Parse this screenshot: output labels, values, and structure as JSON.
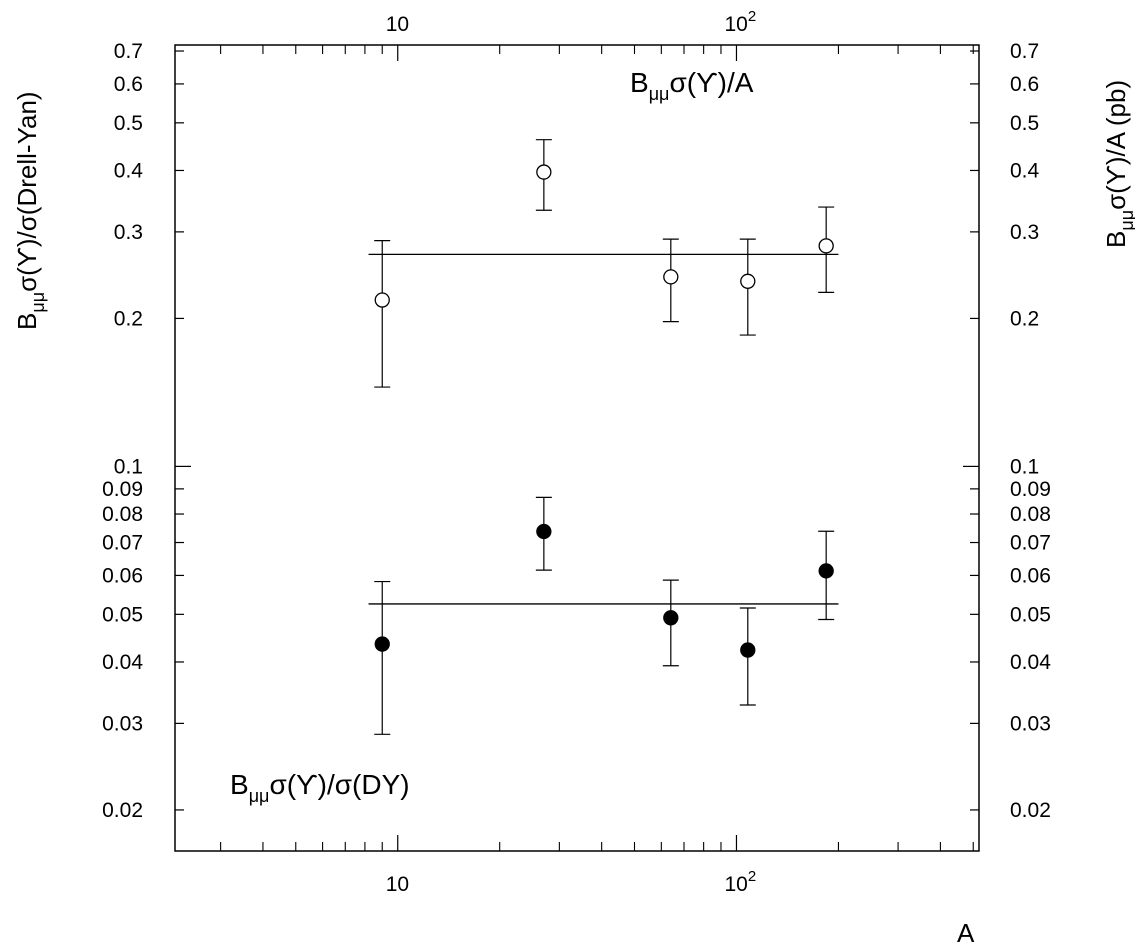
{
  "chart_data": {
    "type": "scatter",
    "x_scale": "log",
    "y_scale": "log",
    "xlim": [
      2.2,
      520
    ],
    "ylim": [
      0.0165,
      0.72
    ],
    "xlabel": "A",
    "ylabel_left": {
      "main": "B",
      "sub": "μμ",
      "rest": "σ(ϒ)/σ(Drell-Yan)"
    },
    "ylabel_right": {
      "main": "B",
      "sub": "μμ",
      "rest": "σ(ϒ)/A (pb)"
    },
    "grid": false,
    "x_tick_labels": [
      {
        "value": 10,
        "base": "10",
        "exp": ""
      },
      {
        "value": 100,
        "base": "10",
        "exp": "2"
      }
    ],
    "x_minor_ticks": [
      3,
      4,
      5,
      6,
      7,
      8,
      9,
      20,
      30,
      40,
      50,
      60,
      70,
      80,
      90,
      200,
      300,
      400,
      500
    ],
    "y_tick_labels": [
      {
        "value": 0.02,
        "label": "0.02"
      },
      {
        "value": 0.03,
        "label": "0.03"
      },
      {
        "value": 0.04,
        "label": "0.04"
      },
      {
        "value": 0.05,
        "label": "0.05"
      },
      {
        "value": 0.06,
        "label": "0.06"
      },
      {
        "value": 0.07,
        "label": "0.07"
      },
      {
        "value": 0.08,
        "label": "0.08"
      },
      {
        "value": 0.09,
        "label": "0.09"
      },
      {
        "value": 0.1,
        "label": "0.1"
      },
      {
        "value": 0.2,
        "label": "0.2"
      },
      {
        "value": 0.3,
        "label": "0.3"
      },
      {
        "value": 0.4,
        "label": "0.4"
      },
      {
        "value": 0.5,
        "label": "0.5"
      },
      {
        "value": 0.6,
        "label": "0.6"
      },
      {
        "value": 0.7,
        "label": "0.7"
      }
    ],
    "series": [
      {
        "marker": "open-circle",
        "label": {
          "main": "B",
          "sub": "μμ",
          "rest": "σ(ϒ)/A"
        },
        "fit_line": {
          "value": 0.27,
          "x_range": [
            8.2,
            200
          ]
        },
        "points": [
          {
            "x": 9,
            "y": 0.218,
            "ylow": 0.145,
            "yhigh": 0.288
          },
          {
            "x": 27,
            "y": 0.397,
            "ylow": 0.332,
            "yhigh": 0.462
          },
          {
            "x": 64,
            "y": 0.243,
            "ylow": 0.197,
            "yhigh": 0.29
          },
          {
            "x": 108,
            "y": 0.238,
            "ylow": 0.185,
            "yhigh": 0.29
          },
          {
            "x": 184,
            "y": 0.281,
            "ylow": 0.226,
            "yhigh": 0.337
          }
        ]
      },
      {
        "marker": "filled-circle",
        "label": {
          "main": "B",
          "sub": "μμ",
          "rest": "σ(ϒ)/σ(DY)"
        },
        "fit_line": {
          "value": 0.0525,
          "x_range": [
            8.2,
            200
          ]
        },
        "points": [
          {
            "x": 9,
            "y": 0.0435,
            "ylow": 0.0285,
            "yhigh": 0.0583
          },
          {
            "x": 27,
            "y": 0.0737,
            "ylow": 0.0615,
            "yhigh": 0.0865
          },
          {
            "x": 64,
            "y": 0.0492,
            "ylow": 0.0393,
            "yhigh": 0.0587
          },
          {
            "x": 108,
            "y": 0.0423,
            "ylow": 0.0327,
            "yhigh": 0.0515
          },
          {
            "x": 184,
            "y": 0.0613,
            "ylow": 0.0488,
            "yhigh": 0.0738
          }
        ]
      }
    ]
  }
}
